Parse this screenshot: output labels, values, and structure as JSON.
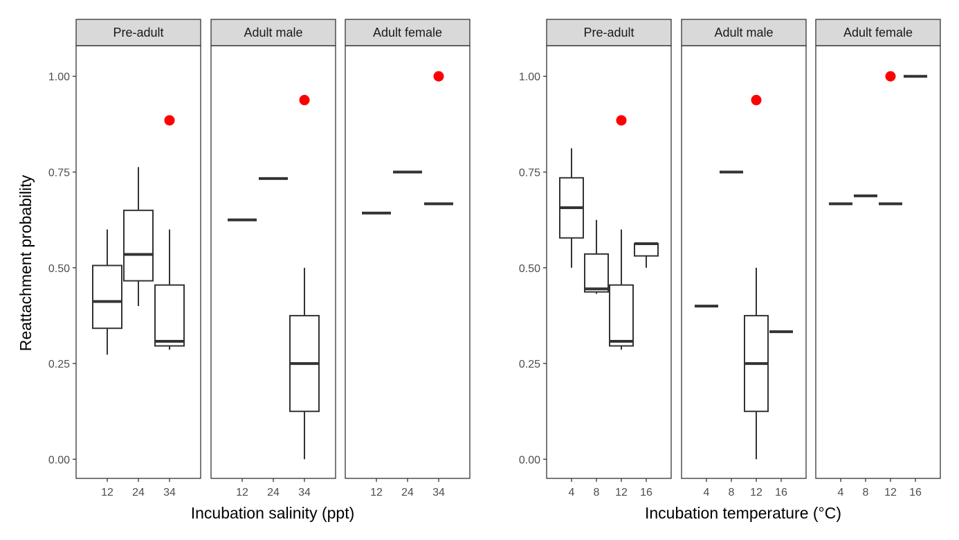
{
  "chart_data": {
    "type": "boxplot",
    "ylabel": "Reattachment probability",
    "ylim": [
      -0.05,
      1.08
    ],
    "y_ticks": [
      "0.00",
      "0.25",
      "0.50",
      "0.75",
      "1.00"
    ],
    "y_tick_values": [
      0,
      0.25,
      0.5,
      0.75,
      1.0
    ],
    "point_color": "#ff0000",
    "groups": [
      {
        "xlabel": "Incubation salinity (ppt)",
        "categories": [
          "12",
          "24",
          "34"
        ],
        "panels": [
          {
            "strip": "Pre-adult",
            "boxes": [
              {
                "x": "12",
                "whisker_low": 0.273,
                "q1": 0.342,
                "median": 0.412,
                "q3": 0.506,
                "whisker_high": 0.6
              },
              {
                "x": "24",
                "whisker_low": 0.4,
                "q1": 0.466,
                "median": 0.535,
                "q3": 0.65,
                "whisker_high": 0.763
              },
              {
                "x": "34",
                "whisker_low": 0.286,
                "q1": 0.296,
                "median": 0.308,
                "q3": 0.455,
                "whisker_high": 0.6
              }
            ],
            "points": [
              {
                "x": "34",
                "y": 0.885
              }
            ]
          },
          {
            "strip": "Adult male",
            "boxes": [
              {
                "x": "12",
                "flat": 0.625
              },
              {
                "x": "24",
                "flat": 0.733
              },
              {
                "x": "34",
                "whisker_low": 0.0,
                "q1": 0.125,
                "median": 0.25,
                "q3": 0.375,
                "whisker_high": 0.5
              }
            ],
            "points": [
              {
                "x": "34",
                "y": 0.938
              }
            ]
          },
          {
            "strip": "Adult female",
            "boxes": [
              {
                "x": "12",
                "flat": 0.643
              },
              {
                "x": "24",
                "flat": 0.75
              },
              {
                "x": "34",
                "flat": 0.667
              }
            ],
            "points": [
              {
                "x": "34",
                "y": 1.0
              }
            ]
          }
        ]
      },
      {
        "xlabel": "Incubation temperature (°C)",
        "categories": [
          "4",
          "8",
          "12",
          "16"
        ],
        "panels": [
          {
            "strip": "Pre-adult",
            "boxes": [
              {
                "x": "4",
                "whisker_low": 0.5,
                "q1": 0.578,
                "median": 0.657,
                "q3": 0.735,
                "whisker_high": 0.812
              },
              {
                "x": "8",
                "whisker_low": 0.432,
                "q1": 0.437,
                "median": 0.445,
                "q3": 0.536,
                "whisker_high": 0.625
              },
              {
                "x": "12",
                "whisker_low": 0.286,
                "q1": 0.296,
                "median": 0.308,
                "q3": 0.455,
                "whisker_high": 0.6
              },
              {
                "x": "16",
                "whisker_low": 0.5,
                "q1": 0.531,
                "median": 0.563,
                "q3": 0.563,
                "whisker_high": 0.563
              }
            ],
            "points": [
              {
                "x": "12",
                "y": 0.885
              }
            ]
          },
          {
            "strip": "Adult male",
            "boxes": [
              {
                "x": "4",
                "flat": 0.4
              },
              {
                "x": "8",
                "flat": 0.75
              },
              {
                "x": "12",
                "whisker_low": 0.0,
                "q1": 0.125,
                "median": 0.25,
                "q3": 0.375,
                "whisker_high": 0.5
              },
              {
                "x": "16",
                "flat": 0.333
              }
            ],
            "points": [
              {
                "x": "12",
                "y": 0.938
              }
            ]
          },
          {
            "strip": "Adult female",
            "boxes": [
              {
                "x": "4",
                "flat": 0.667
              },
              {
                "x": "8",
                "flat": 0.688
              },
              {
                "x": "12",
                "flat": 0.667
              },
              {
                "x": "16",
                "flat": 1.0
              }
            ],
            "points": [
              {
                "x": "12",
                "y": 1.0
              }
            ]
          }
        ]
      }
    ]
  }
}
